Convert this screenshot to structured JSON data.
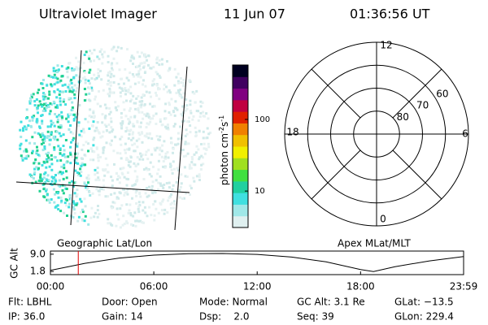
{
  "header": {
    "instrument": "Ultraviolet Imager",
    "date": "11 Jun 07",
    "time": "01:36:56 UT"
  },
  "image_panel": {
    "label": "Geographic Lat/Lon"
  },
  "colorbar": {
    "label": "photon cm",
    "exp1": "-2",
    "unit2": "s",
    "exp2": "-1",
    "log": true,
    "lim": [
      3.1,
      575
    ],
    "ticks": [
      10,
      100
    ],
    "colors": [
      "#e0f0f0",
      "#a0e8e8",
      "#40e0e0",
      "#20d0a0",
      "#40e040",
      "#a0e020",
      "#f0f000",
      "#f0c000",
      "#f08000",
      "#e02000",
      "#c00040",
      "#800080",
      "#400060",
      "#000020"
    ]
  },
  "polar": {
    "label": "Apex MLat/MLT",
    "hour_labels": [
      "12",
      "6",
      "0",
      "18"
    ],
    "lat_rings": [
      80,
      70,
      60
    ],
    "lat_lim": [
      50,
      90
    ]
  },
  "chart_data": {
    "type": "line",
    "ylabel": "GC Alt",
    "color": "#000000",
    "x": [
      0,
      2,
      4,
      6,
      8,
      10,
      12,
      14,
      16,
      18,
      18.75,
      20,
      22,
      23.98
    ],
    "values": [
      2.3,
      5.2,
      7.4,
      8.6,
      9.2,
      9.3,
      8.9,
      7.8,
      5.8,
      2.6,
      1.8,
      3.8,
      6.2,
      8.0
    ],
    "xlim": [
      0,
      23.98
    ],
    "xticks": [
      {
        "value": 0,
        "label": "00:00"
      },
      {
        "value": 6,
        "label": "06:00"
      },
      {
        "value": 12,
        "label": "12:00"
      },
      {
        "value": 18,
        "label": "18:00"
      },
      {
        "value": 23.98,
        "label": "23:59"
      }
    ],
    "ylim": [
      0.5,
      10.3
    ],
    "yticks": [
      {
        "value": 1.8,
        "label": "1.8"
      },
      {
        "value": 9,
        "label": "9.0"
      }
    ],
    "marker_x": 1.616,
    "marker_color": "#e00000"
  },
  "footer": {
    "rows": [
      [
        "Flt: LBHL",
        "Door: Open",
        "Mode: Normal",
        "GC Alt: 3.1 Re",
        "GLat: −13.5"
      ],
      [
        "IP: 36.0",
        "Gain: 14",
        "Dsp:    2.0",
        "Seq: 39",
        "GLon: 229.4"
      ]
    ]
  }
}
